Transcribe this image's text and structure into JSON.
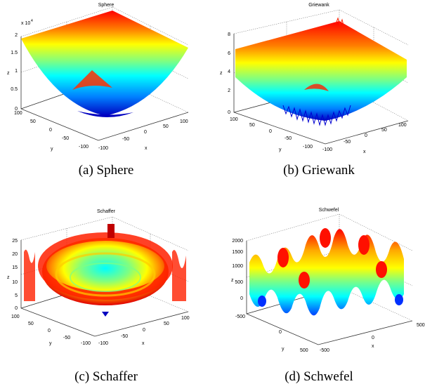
{
  "figure": {
    "panels": [
      {
        "key": "sphere",
        "plot_title": "Sphere",
        "caption": "(a)  Sphere",
        "exponent_label": "x 10",
        "exponent_power": "4",
        "z_ticks": [
          "0",
          "0.5",
          "1",
          "1.5",
          "2"
        ],
        "y_ticks": [
          "100",
          "50",
          "0",
          "-50",
          "-100"
        ],
        "x_ticks": [
          "-100",
          "-50",
          "0",
          "50",
          "100"
        ],
        "xlabel": "x",
        "ylabel": "y",
        "zlabel": "z"
      },
      {
        "key": "griewank",
        "plot_title": "Griewank",
        "caption": "(b)  Griewank",
        "z_ticks": [
          "0",
          "2",
          "4",
          "6",
          "8"
        ],
        "y_ticks": [
          "100",
          "50",
          "0",
          "-50",
          "-100"
        ],
        "x_ticks": [
          "-100",
          "-50",
          "0",
          "50",
          "100"
        ],
        "xlabel": "x",
        "ylabel": "y",
        "zlabel": "z"
      },
      {
        "key": "schaffer",
        "plot_title": "Schaffer",
        "caption": "(c)  Schaffer",
        "z_ticks": [
          "0",
          "5",
          "10",
          "15",
          "20",
          "25"
        ],
        "y_ticks": [
          "100",
          "50",
          "0",
          "-50",
          "-100"
        ],
        "x_ticks": [
          "-100",
          "-50",
          "0",
          "50",
          "100"
        ],
        "xlabel": "x",
        "ylabel": "y",
        "zlabel": "z"
      },
      {
        "key": "schwefel",
        "plot_title": "Schwefel",
        "caption": "(d)  Schwefel",
        "z_ticks": [
          "0",
          "500",
          "1000",
          "1500",
          "2000"
        ],
        "y_ticks": [
          "-500",
          "0",
          "500"
        ],
        "x_ticks": [
          "-500",
          "0",
          "500"
        ],
        "xlabel": "x",
        "ylabel": "y",
        "zlabel": "z"
      }
    ],
    "colormap": [
      "#00007f",
      "#0000ff",
      "#007fff",
      "#00ffff",
      "#7fff7f",
      "#ffff00",
      "#ff7f00",
      "#ff0000",
      "#7f0000"
    ]
  }
}
